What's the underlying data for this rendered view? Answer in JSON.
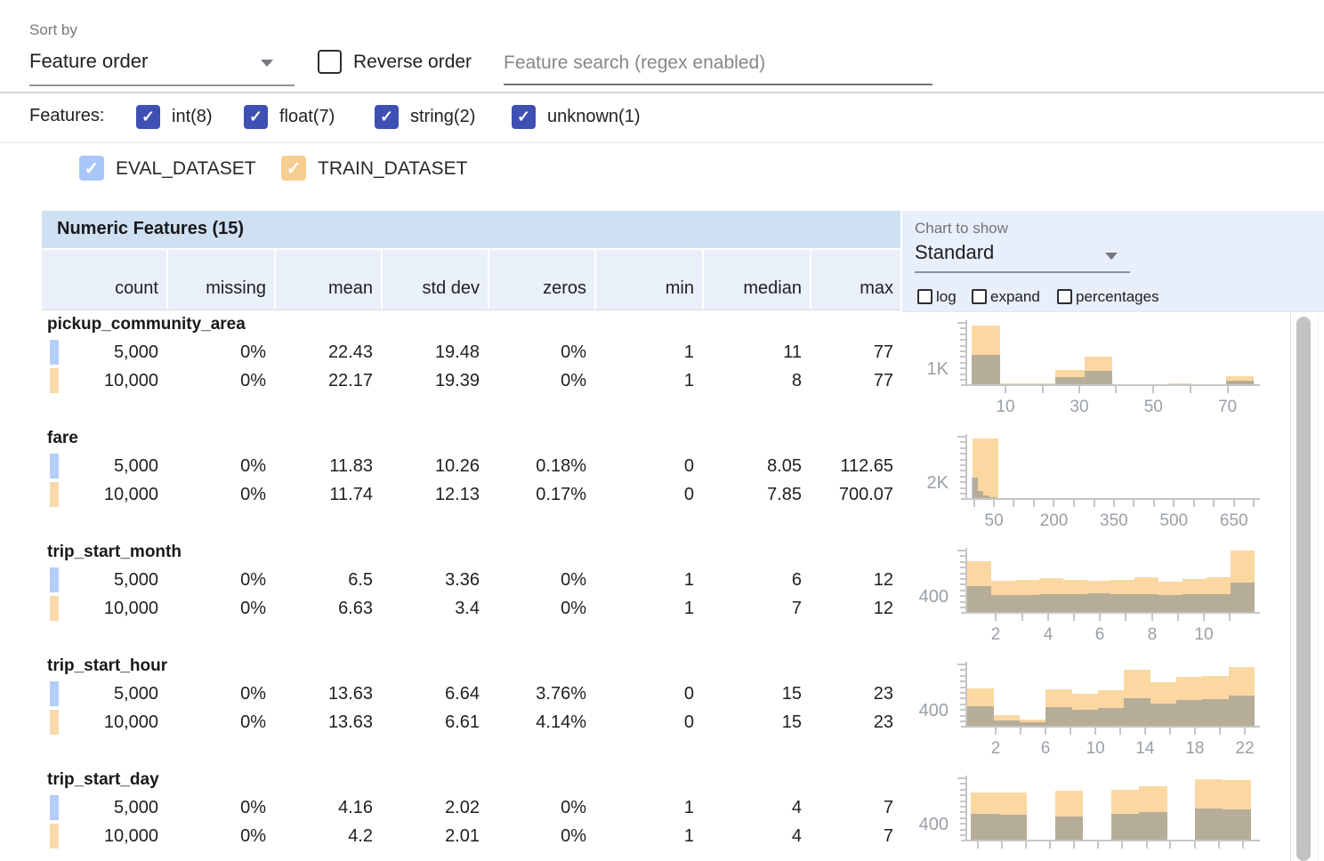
{
  "sort_bar": {
    "sort_by_label": "Sort by",
    "sort_value": "Feature order",
    "reverse_label": "Reverse order",
    "search_placeholder": "Feature search (regex enabled)"
  },
  "features_bar": {
    "label": "Features:",
    "types": [
      {
        "label": "int(8)",
        "checked": true
      },
      {
        "label": "float(7)",
        "checked": true
      },
      {
        "label": "string(2)",
        "checked": true
      },
      {
        "label": "unknown(1)",
        "checked": true
      }
    ]
  },
  "datasets": [
    {
      "name": "EVAL_DATASET",
      "checked": true,
      "checkbox_color": "#a7c7f9",
      "marker_color": "#b5cef7",
      "bar_color": "#b9cdf0"
    },
    {
      "name": "TRAIN_DATASET",
      "checked": true,
      "checkbox_color": "#f8cd90",
      "marker_color": "#f8d9ab",
      "bar_color": "#fbd8a2"
    }
  ],
  "table": {
    "title": "Numeric Features (15)",
    "columns": [
      "count",
      "missing",
      "mean",
      "std dev",
      "zeros",
      "min",
      "median",
      "max"
    ]
  },
  "chart_controls": {
    "label": "Chart to show",
    "selected": "Standard",
    "options": [
      "log",
      "expand",
      "percentages"
    ]
  },
  "features": [
    {
      "name": "pickup_community_area",
      "rows": [
        {
          "dataset": "EVAL_DATASET",
          "values": [
            "5,000",
            "0%",
            "22.43",
            "19.48",
            "0%",
            "1",
            "11",
            "77"
          ]
        },
        {
          "dataset": "TRAIN_DATASET",
          "values": [
            "10,000",
            "0%",
            "22.17",
            "19.39",
            "0%",
            "1",
            "8",
            "77"
          ]
        }
      ]
    },
    {
      "name": "fare",
      "rows": [
        {
          "dataset": "EVAL_DATASET",
          "values": [
            "5,000",
            "0%",
            "11.83",
            "10.26",
            "0.18%",
            "0",
            "8.05",
            "112.65"
          ]
        },
        {
          "dataset": "TRAIN_DATASET",
          "values": [
            "10,000",
            "0%",
            "11.74",
            "12.13",
            "0.17%",
            "0",
            "7.85",
            "700.07"
          ]
        }
      ]
    },
    {
      "name": "trip_start_month",
      "rows": [
        {
          "dataset": "EVAL_DATASET",
          "values": [
            "5,000",
            "0%",
            "6.5",
            "3.36",
            "0%",
            "1",
            "6",
            "12"
          ]
        },
        {
          "dataset": "TRAIN_DATASET",
          "values": [
            "10,000",
            "0%",
            "6.63",
            "3.4",
            "0%",
            "1",
            "7",
            "12"
          ]
        }
      ]
    },
    {
      "name": "trip_start_hour",
      "rows": [
        {
          "dataset": "EVAL_DATASET",
          "values": [
            "5,000",
            "0%",
            "13.63",
            "6.64",
            "3.76%",
            "0",
            "15",
            "23"
          ]
        },
        {
          "dataset": "TRAIN_DATASET",
          "values": [
            "10,000",
            "0%",
            "13.63",
            "6.61",
            "4.14%",
            "0",
            "15",
            "23"
          ]
        }
      ]
    },
    {
      "name": "trip_start_day",
      "rows": [
        {
          "dataset": "EVAL_DATASET",
          "values": [
            "5,000",
            "0%",
            "4.16",
            "2.02",
            "0%",
            "1",
            "4",
            "7"
          ]
        },
        {
          "dataset": "TRAIN_DATASET",
          "values": [
            "10,000",
            "0%",
            "4.2",
            "2.01",
            "0%",
            "1",
            "4",
            "7"
          ]
        }
      ]
    }
  ],
  "chart_data": [
    {
      "feature": "pickup_community_area",
      "type": "bar",
      "ylabel": "1K",
      "note": "overlaid histograms, bar heights normalized to plot height 0-1, x as fraction of axis",
      "xticks": [
        {
          "f": 0.136,
          "label": "10"
        },
        {
          "f": 0.264,
          "label": ""
        },
        {
          "f": 0.392,
          "label": "30"
        },
        {
          "f": 0.52,
          "label": ""
        },
        {
          "f": 0.649,
          "label": "50"
        },
        {
          "f": 0.777,
          "label": ""
        },
        {
          "f": 0.906,
          "label": "70"
        }
      ],
      "series": [
        {
          "name": "TRAIN_DATASET",
          "bars": [
            [
              0.018,
              0.117,
              0.94
            ],
            [
              0.117,
              0.31,
              0.013
            ],
            [
              0.31,
              0.41,
              0.23
            ],
            [
              0.41,
              0.505,
              0.44
            ],
            [
              0.7,
              0.78,
              0.018
            ],
            [
              0.9,
              0.997,
              0.13
            ]
          ]
        },
        {
          "name": "EVAL_DATASET",
          "bars": [
            [
              0.018,
              0.117,
              0.47
            ],
            [
              0.31,
              0.41,
              0.11
            ],
            [
              0.41,
              0.505,
              0.22
            ],
            [
              0.9,
              0.997,
              0.055
            ]
          ]
        }
      ]
    },
    {
      "feature": "fare",
      "type": "bar",
      "ylabel": "2K",
      "xticks": [
        {
          "f": 0.027,
          "label": ""
        },
        {
          "f": 0.096,
          "label": "50"
        },
        {
          "f": 0.165,
          "label": ""
        },
        {
          "f": 0.235,
          "label": ""
        },
        {
          "f": 0.304,
          "label": "200"
        },
        {
          "f": 0.373,
          "label": ""
        },
        {
          "f": 0.443,
          "label": ""
        },
        {
          "f": 0.512,
          "label": "350"
        },
        {
          "f": 0.581,
          "label": ""
        },
        {
          "f": 0.651,
          "label": ""
        },
        {
          "f": 0.72,
          "label": "500"
        },
        {
          "f": 0.789,
          "label": ""
        },
        {
          "f": 0.859,
          "label": ""
        },
        {
          "f": 0.928,
          "label": "650"
        },
        {
          "f": 0.997,
          "label": ""
        }
      ],
      "series": [
        {
          "name": "TRAIN_DATASET",
          "bars": [
            [
              0.022,
              0.111,
              0.96
            ]
          ]
        },
        {
          "name": "EVAL_DATASET",
          "bars": [
            [
              0.019,
              0.04,
              0.33
            ],
            [
              0.04,
              0.06,
              0.11
            ],
            [
              0.06,
              0.08,
              0.04
            ],
            [
              0.08,
              0.105,
              0.015
            ]
          ]
        }
      ]
    },
    {
      "feature": "trip_start_month",
      "type": "bar",
      "ylabel": "400",
      "xticks": [
        {
          "f": 0.102,
          "label": "2"
        },
        {
          "f": 0.193,
          "label": ""
        },
        {
          "f": 0.284,
          "label": "4"
        },
        {
          "f": 0.374,
          "label": ""
        },
        {
          "f": 0.463,
          "label": "6"
        },
        {
          "f": 0.554,
          "label": ""
        },
        {
          "f": 0.645,
          "label": "8"
        },
        {
          "f": 0.735,
          "label": ""
        },
        {
          "f": 0.824,
          "label": "10"
        },
        {
          "f": 0.915,
          "label": ""
        }
      ],
      "series": [
        {
          "name": "TRAIN_DATASET",
          "bars": [
            [
              0.004,
              0.087,
              0.82
            ],
            [
              0.087,
              0.17,
              0.5
            ],
            [
              0.17,
              0.253,
              0.52
            ],
            [
              0.253,
              0.336,
              0.54
            ],
            [
              0.336,
              0.419,
              0.52
            ],
            [
              0.419,
              0.501,
              0.5
            ],
            [
              0.501,
              0.584,
              0.52
            ],
            [
              0.584,
              0.667,
              0.56
            ],
            [
              0.667,
              0.75,
              0.48
            ],
            [
              0.75,
              0.833,
              0.53
            ],
            [
              0.833,
              0.916,
              0.56
            ],
            [
              0.916,
              0.999,
              0.98
            ]
          ]
        },
        {
          "name": "EVAL_DATASET",
          "bars": [
            [
              0.004,
              0.087,
              0.42
            ],
            [
              0.087,
              0.17,
              0.27
            ],
            [
              0.17,
              0.253,
              0.27
            ],
            [
              0.253,
              0.336,
              0.28
            ],
            [
              0.336,
              0.419,
              0.29
            ],
            [
              0.419,
              0.501,
              0.3
            ],
            [
              0.501,
              0.584,
              0.28
            ],
            [
              0.584,
              0.667,
              0.28
            ],
            [
              0.667,
              0.75,
              0.27
            ],
            [
              0.75,
              0.833,
              0.28
            ],
            [
              0.833,
              0.916,
              0.28
            ],
            [
              0.916,
              0.999,
              0.47
            ]
          ]
        }
      ]
    },
    {
      "feature": "trip_start_hour",
      "type": "bar",
      "ylabel": "400",
      "xticks": [
        {
          "f": 0.102,
          "label": "2"
        },
        {
          "f": 0.188,
          "label": ""
        },
        {
          "f": 0.275,
          "label": "6"
        },
        {
          "f": 0.361,
          "label": ""
        },
        {
          "f": 0.448,
          "label": "10"
        },
        {
          "f": 0.534,
          "label": ""
        },
        {
          "f": 0.62,
          "label": "14"
        },
        {
          "f": 0.707,
          "label": ""
        },
        {
          "f": 0.793,
          "label": "18"
        },
        {
          "f": 0.879,
          "label": ""
        },
        {
          "f": 0.966,
          "label": "22"
        }
      ],
      "series": [
        {
          "name": "TRAIN_DATASET",
          "bars": [
            [
              0.004,
              0.095,
              0.6
            ],
            [
              0.095,
              0.185,
              0.17
            ],
            [
              0.185,
              0.276,
              0.1
            ],
            [
              0.276,
              0.366,
              0.58
            ],
            [
              0.366,
              0.457,
              0.52
            ],
            [
              0.457,
              0.547,
              0.57
            ],
            [
              0.547,
              0.638,
              0.9
            ],
            [
              0.638,
              0.728,
              0.7
            ],
            [
              0.728,
              0.819,
              0.78
            ],
            [
              0.819,
              0.909,
              0.8
            ],
            [
              0.909,
              0.999,
              0.95
            ]
          ]
        },
        {
          "name": "EVAL_DATASET",
          "bars": [
            [
              0.004,
              0.095,
              0.31
            ],
            [
              0.095,
              0.185,
              0.085
            ],
            [
              0.185,
              0.276,
              0.055
            ],
            [
              0.276,
              0.366,
              0.3
            ],
            [
              0.366,
              0.457,
              0.26
            ],
            [
              0.457,
              0.547,
              0.28
            ],
            [
              0.547,
              0.638,
              0.45
            ],
            [
              0.638,
              0.728,
              0.36
            ],
            [
              0.728,
              0.819,
              0.41
            ],
            [
              0.819,
              0.909,
              0.43
            ],
            [
              0.909,
              0.999,
              0.49
            ]
          ]
        }
      ]
    },
    {
      "feature": "trip_start_day",
      "type": "bar",
      "ylabel": "400",
      "xticks": [
        {
          "f": 0.04,
          "label": ""
        },
        {
          "f": 0.124,
          "label": ""
        },
        {
          "f": 0.207,
          "label": ""
        },
        {
          "f": 0.291,
          "label": ""
        },
        {
          "f": 0.374,
          "label": ""
        },
        {
          "f": 0.458,
          "label": ""
        },
        {
          "f": 0.541,
          "label": ""
        },
        {
          "f": 0.625,
          "label": ""
        },
        {
          "f": 0.708,
          "label": ""
        },
        {
          "f": 0.792,
          "label": ""
        },
        {
          "f": 0.875,
          "label": ""
        },
        {
          "f": 0.959,
          "label": ""
        }
      ],
      "series": [
        {
          "name": "TRAIN_DATASET",
          "bars": [
            [
              0.015,
              0.113,
              0.76
            ],
            [
              0.113,
              0.21,
              0.76
            ],
            [
              0.308,
              0.404,
              0.79
            ],
            [
              0.503,
              0.6,
              0.8
            ],
            [
              0.6,
              0.697,
              0.86
            ],
            [
              0.793,
              0.89,
              0.97
            ],
            [
              0.89,
              0.988,
              0.96
            ]
          ]
        },
        {
          "name": "EVAL_DATASET",
          "bars": [
            [
              0.015,
              0.113,
              0.41
            ],
            [
              0.113,
              0.21,
              0.4
            ],
            [
              0.308,
              0.404,
              0.37
            ],
            [
              0.503,
              0.6,
              0.42
            ],
            [
              0.6,
              0.697,
              0.44
            ],
            [
              0.793,
              0.89,
              0.5
            ],
            [
              0.89,
              0.988,
              0.49
            ]
          ]
        }
      ]
    }
  ]
}
